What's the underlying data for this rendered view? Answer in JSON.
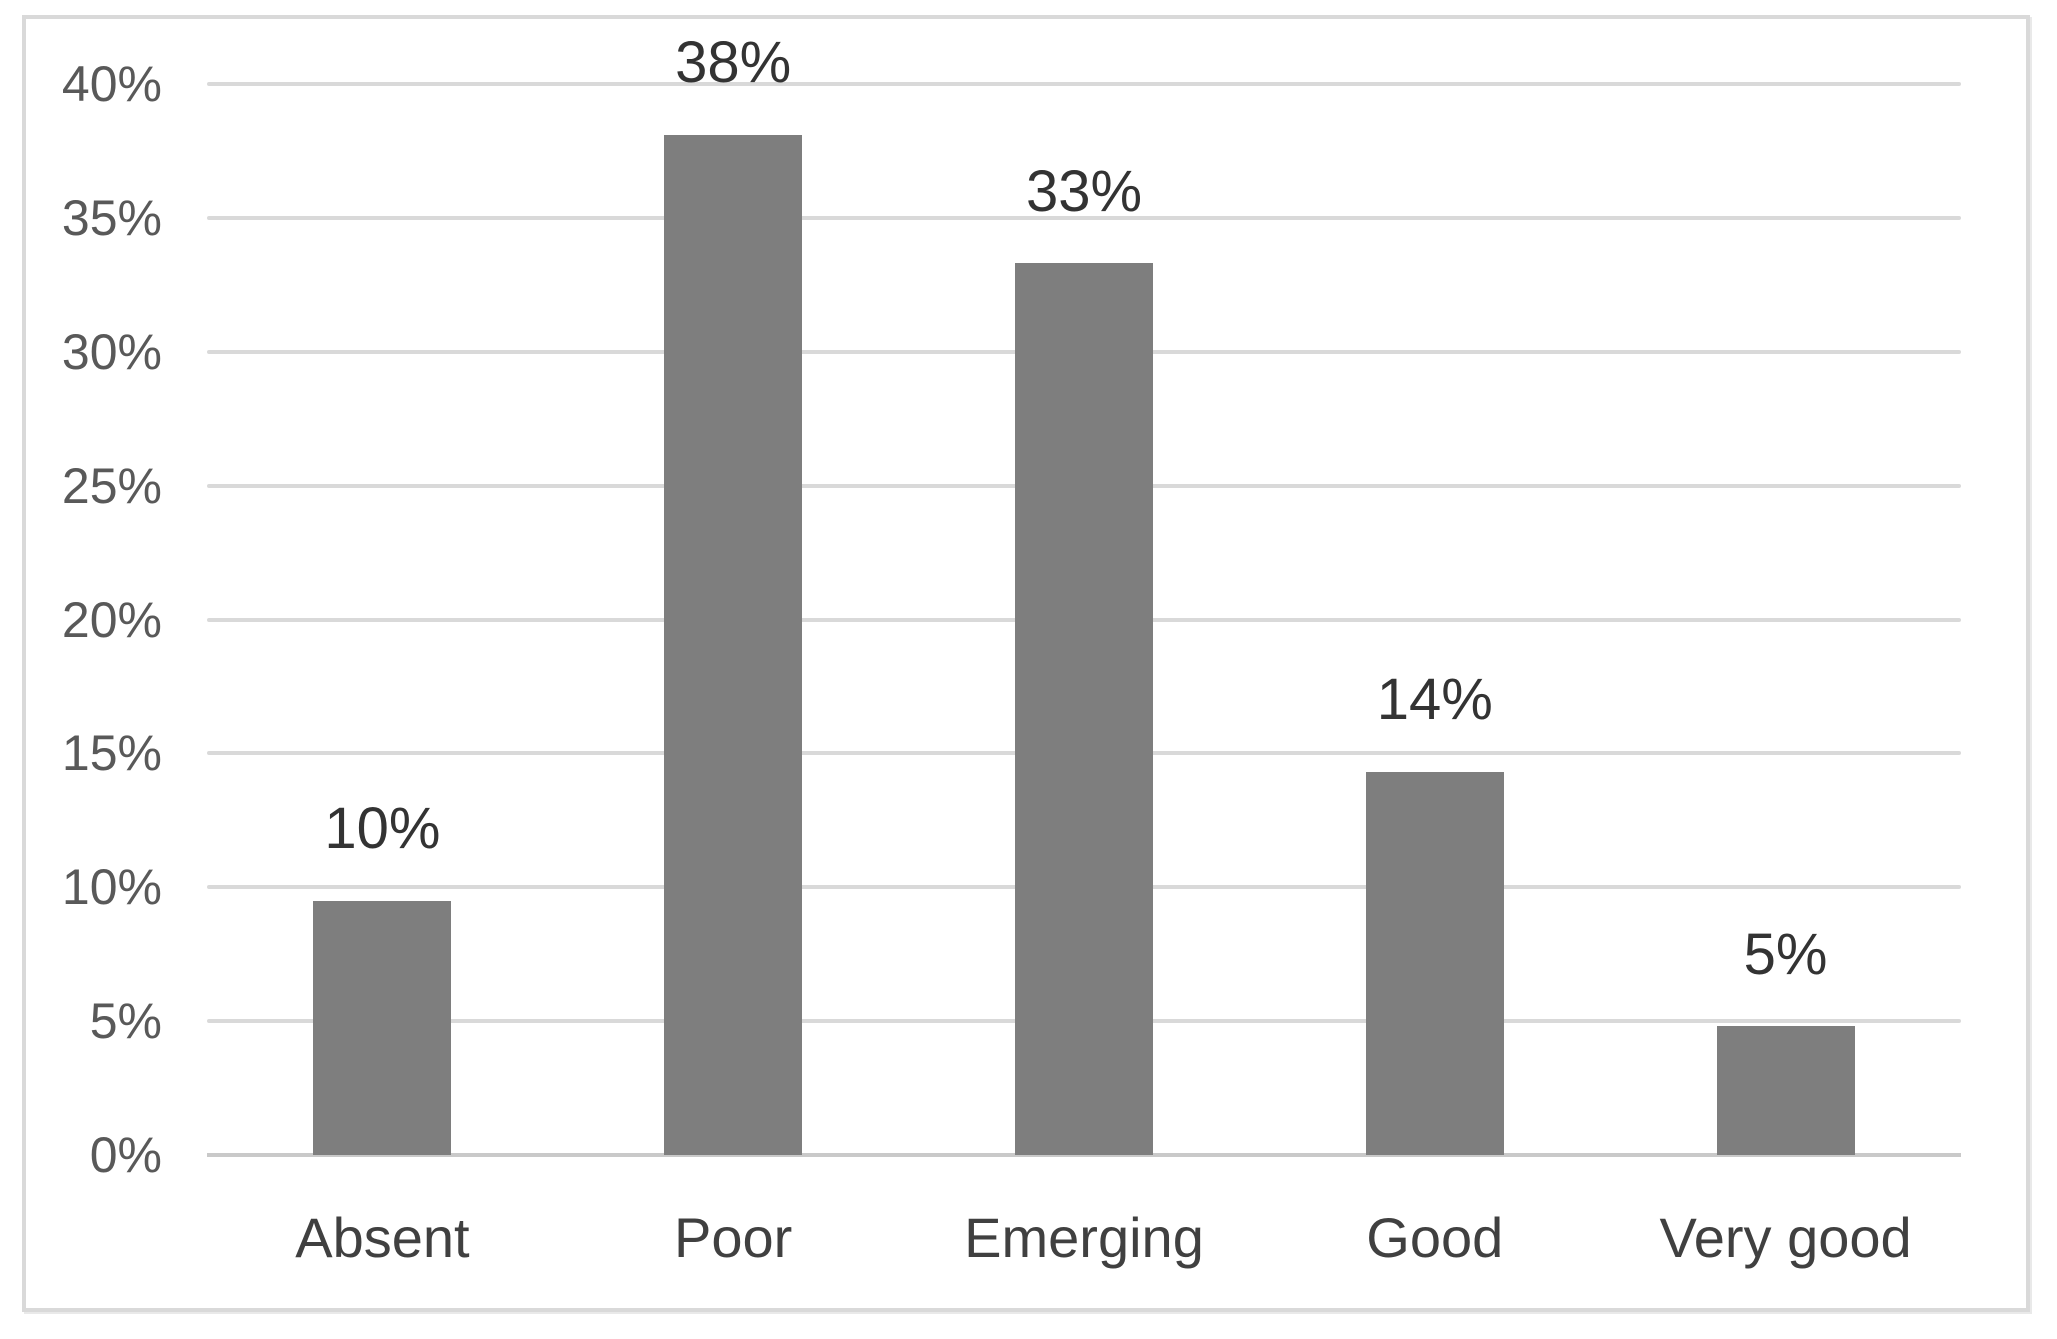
{
  "chart_data": {
    "type": "bar",
    "title": "",
    "xlabel": "",
    "ylabel": "",
    "categories": [
      "Absent",
      "Poor",
      "Emerging",
      "Good",
      "Very good"
    ],
    "values": [
      9.5,
      38.1,
      33.3,
      14.3,
      4.8
    ],
    "data_labels": [
      "10%",
      "38%",
      "33%",
      "14%",
      "5%"
    ],
    "ylim": [
      0,
      40
    ],
    "ytick_interval": 5,
    "ytick_labels": [
      "0%",
      "5%",
      "10%",
      "15%",
      "20%",
      "25%",
      "30%",
      "35%",
      "40%"
    ],
    "grid": true,
    "legend": false,
    "colors": {
      "bar_fill": "#7e7e7e",
      "gridline": "#d9d9d9",
      "axis_line": "#c9c9c9",
      "tick_label": "#595959",
      "category_label": "#404040",
      "data_label": "#333333",
      "frame_border": "#d9d9d9",
      "background": "#ffffff"
    }
  }
}
